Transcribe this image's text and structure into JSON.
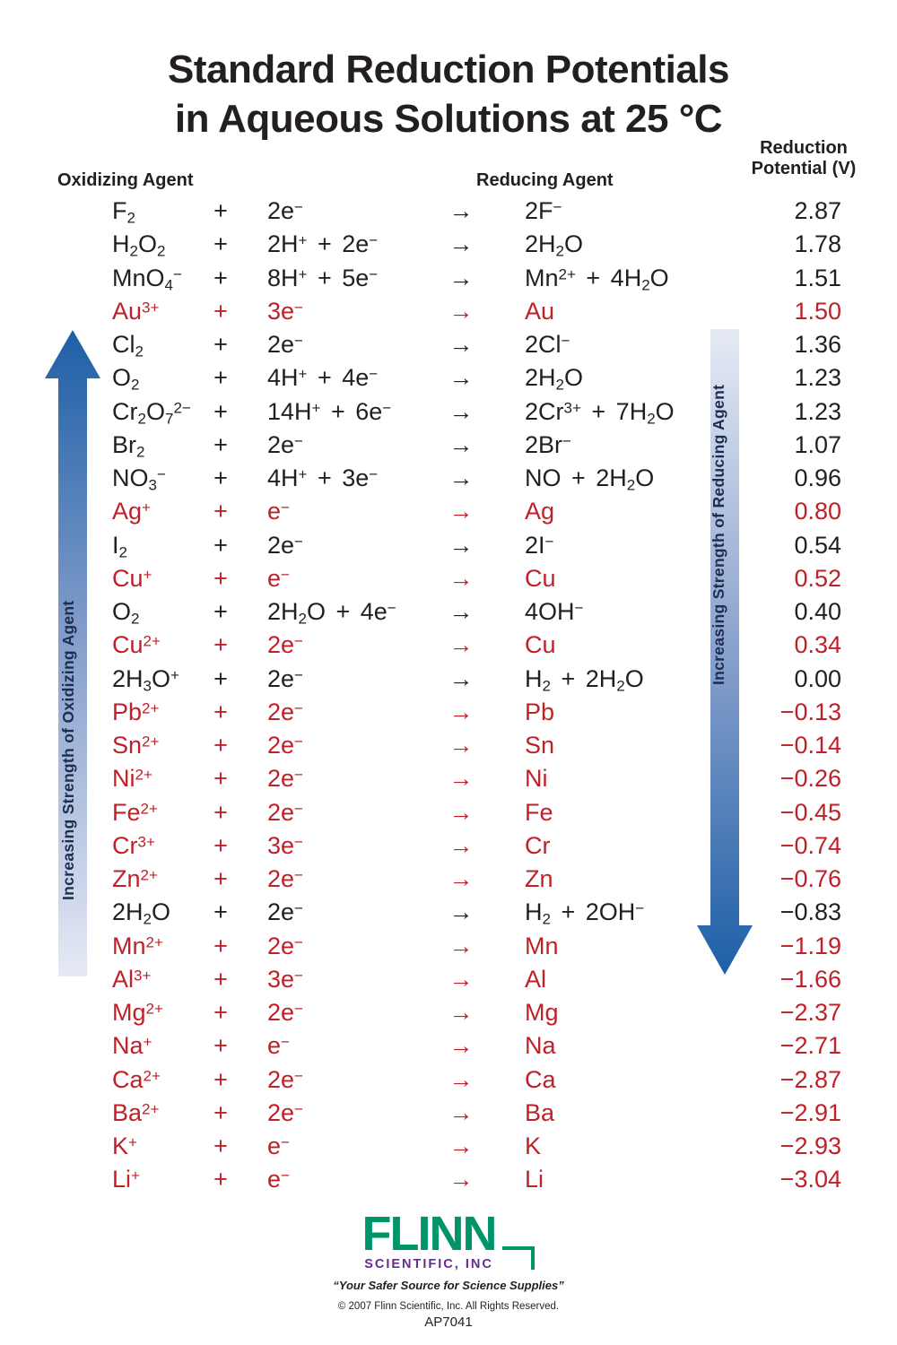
{
  "title": {
    "line1": "Standard Reduction Potentials",
    "line2": "in Aqueous Solutions at 25 °C"
  },
  "column_headers": {
    "oxidizing": "Oxidizing Agent",
    "reducing": "Reducing Agent",
    "potential": [
      "Reduction",
      "Potential (V)"
    ]
  },
  "symbols": {
    "plus": "+",
    "yields": "→"
  },
  "colors": {
    "background": "#ffffff",
    "black_text": "#231f20",
    "red_text": "#c02028",
    "logo_green": "#009569",
    "logo_purple": "#642d8f"
  },
  "side_arrows": {
    "left_label": "Increasing Strength of Oxidizing Agent",
    "right_label": "Increasing Strength of Reducing Agent",
    "gradient_dark": "#1d5fa7",
    "gradient_mid": "#7e9ac8",
    "gradient_light": "#e6eaf5",
    "label_color": "#1e2c50"
  },
  "table": {
    "rows": [
      {
        "ox": "F_2",
        "terms": "2e^-",
        "product": "2F^-",
        "potential": "2.87",
        "red": false
      },
      {
        "ox": "H_2O_2",
        "terms": "2H^+ + 2e^-",
        "product": "2H_2O",
        "potential": "1.78",
        "red": false
      },
      {
        "ox": "MnO_4^-",
        "terms": "8H^+ + 5e^-",
        "product": "Mn^2+ + 4H_2O",
        "potential": "1.51",
        "red": false
      },
      {
        "ox": "Au^3+",
        "terms": "3e^-",
        "product": "Au",
        "potential": "1.50",
        "red": true
      },
      {
        "ox": "Cl_2",
        "terms": "2e^-",
        "product": "2Cl^-",
        "potential": "1.36",
        "red": false
      },
      {
        "ox": "O_2",
        "terms": "4H^+ + 4e^-",
        "product": "2H_2O",
        "potential": "1.23",
        "red": false
      },
      {
        "ox": "Cr_2O_7^2-",
        "terms": "14H^+ + 6e^-",
        "product": "2Cr^3+ + 7H_2O",
        "potential": "1.23",
        "red": false
      },
      {
        "ox": "Br_2",
        "terms": "2e^-",
        "product": "2Br^-",
        "potential": "1.07",
        "red": false
      },
      {
        "ox": "NO_3^-",
        "terms": "4H^+ + 3e^-",
        "product": "NO + 2H_2O",
        "potential": "0.96",
        "red": false
      },
      {
        "ox": "Ag^+",
        "terms": "e^-",
        "product": "Ag",
        "potential": "0.80",
        "red": true
      },
      {
        "ox": "I_2",
        "terms": "2e^-",
        "product": "2I^-",
        "potential": "0.54",
        "red": false
      },
      {
        "ox": "Cu^+",
        "terms": "e^-",
        "product": "Cu",
        "potential": "0.52",
        "red": true
      },
      {
        "ox": "O_2",
        "terms": "2H_2O + 4e^-",
        "product": "4OH^-",
        "potential": "0.40",
        "red": false
      },
      {
        "ox": "Cu^2+",
        "terms": "2e^-",
        "product": "Cu",
        "potential": "0.34",
        "red": true
      },
      {
        "ox": "2H_3O^+",
        "terms": "2e^-",
        "product": "H_2 + 2H_2O",
        "potential": "0.00",
        "red": false
      },
      {
        "ox": "Pb^2+",
        "terms": "2e^-",
        "product": "Pb",
        "potential": "−0.13",
        "red": true
      },
      {
        "ox": "Sn^2+",
        "terms": "2e^-",
        "product": "Sn",
        "potential": "−0.14",
        "red": true
      },
      {
        "ox": "Ni^2+",
        "terms": "2e^-",
        "product": "Ni",
        "potential": "−0.26",
        "red": true
      },
      {
        "ox": "Fe^2+",
        "terms": "2e^-",
        "product": "Fe",
        "potential": "−0.45",
        "red": true
      },
      {
        "ox": "Cr^3+",
        "terms": "3e^-",
        "product": "Cr",
        "potential": "−0.74",
        "red": true
      },
      {
        "ox": "Zn^2+",
        "terms": "2e^-",
        "product": "Zn",
        "potential": "−0.76",
        "red": true
      },
      {
        "ox": "2H_2O",
        "terms": "2e^-",
        "product": "H_2 + 2OH^-",
        "potential": "−0.83",
        "red": false
      },
      {
        "ox": "Mn^2+",
        "terms": "2e^-",
        "product": "Mn",
        "potential": "−1.19",
        "red": true
      },
      {
        "ox": "Al^3+",
        "terms": "3e^-",
        "product": "Al",
        "potential": "−1.66",
        "red": true
      },
      {
        "ox": "Mg^2+",
        "terms": "2e^-",
        "product": "Mg",
        "potential": "−2.37",
        "red": true
      },
      {
        "ox": "Na^+",
        "terms": "e^-",
        "product": "Na",
        "potential": "−2.71",
        "red": true
      },
      {
        "ox": "Ca^2+",
        "terms": "2e^-",
        "product": "Ca",
        "potential": "−2.87",
        "red": true
      },
      {
        "ox": "Ba^2+",
        "terms": "2e^-",
        "product": "Ba",
        "potential": "−2.91",
        "red": true
      },
      {
        "ox": "K^+",
        "terms": "e^-",
        "product": "K",
        "potential": "−2.93",
        "red": true
      },
      {
        "ox": "Li^+",
        "terms": "e^-",
        "product": "Li",
        "potential": "−3.04",
        "red": true
      }
    ]
  },
  "footer": {
    "logo_main": "FLINN",
    "logo_sub": "SCIENTIFIC, INC",
    "tagline": "“Your Safer Source for Science Supplies”",
    "copyright": "© 2007 Flinn Scientific, Inc. All Rights Reserved.",
    "item_number": "AP7041"
  }
}
